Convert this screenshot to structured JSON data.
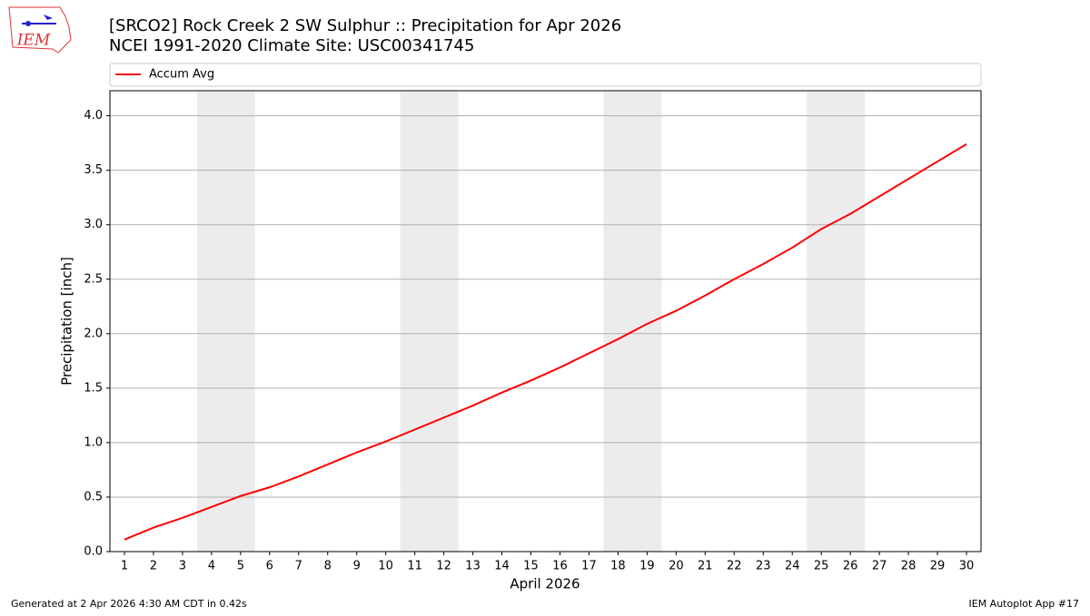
{
  "chart_data": {
    "type": "line",
    "logo": "IEM",
    "title": "[SRCO2] Rock Creek 2 SW Sulphur :: Precipitation for Apr 2026",
    "subtitle": "NCEI 1991-2020 Climate Site: USC00341745",
    "xlabel": "April 2026",
    "ylabel": "Precipitation [inch]",
    "footer_left": "Generated at 2 Apr 2026 4:30 AM CDT in 0.42s",
    "footer_right": "IEM Autoplot App #17",
    "x": [
      1,
      2,
      3,
      4,
      5,
      6,
      7,
      8,
      9,
      10,
      11,
      12,
      13,
      14,
      15,
      16,
      17,
      18,
      19,
      20,
      21,
      22,
      23,
      24,
      25,
      26,
      27,
      28,
      29,
      30
    ],
    "series": [
      {
        "name": "Accum Avg",
        "color": "#ff0000",
        "values": [
          0.11,
          0.22,
          0.31,
          0.41,
          0.51,
          0.59,
          0.69,
          0.8,
          0.91,
          1.01,
          1.12,
          1.23,
          1.34,
          1.46,
          1.57,
          1.69,
          1.82,
          1.95,
          2.09,
          2.21,
          2.35,
          2.5,
          2.64,
          2.79,
          2.96,
          3.1,
          3.26,
          3.42,
          3.58,
          3.74
        ]
      }
    ],
    "shaded_spans": [
      [
        3.5,
        5.5
      ],
      [
        10.5,
        12.5
      ],
      [
        17.5,
        19.5
      ],
      [
        24.5,
        26.5
      ]
    ],
    "shade_color": "#ececec",
    "xlim": [
      0.5,
      30.5
    ],
    "ylim": [
      0,
      4.23
    ],
    "xticks": [
      1,
      2,
      3,
      4,
      5,
      6,
      7,
      8,
      9,
      10,
      11,
      12,
      13,
      14,
      15,
      16,
      17,
      18,
      19,
      20,
      21,
      22,
      23,
      24,
      25,
      26,
      27,
      28,
      29,
      30
    ],
    "yticks": [
      {
        "value": 0,
        "label": "0.0"
      },
      0.5,
      {
        "value": 1,
        "label": "1.0"
      },
      1.5,
      {
        "value": 2,
        "label": "2.0"
      },
      2.5,
      {
        "value": 3,
        "label": "3.0"
      },
      3.5,
      {
        "value": 4,
        "label": "4.0"
      }
    ],
    "grid": true,
    "legend": "top"
  }
}
